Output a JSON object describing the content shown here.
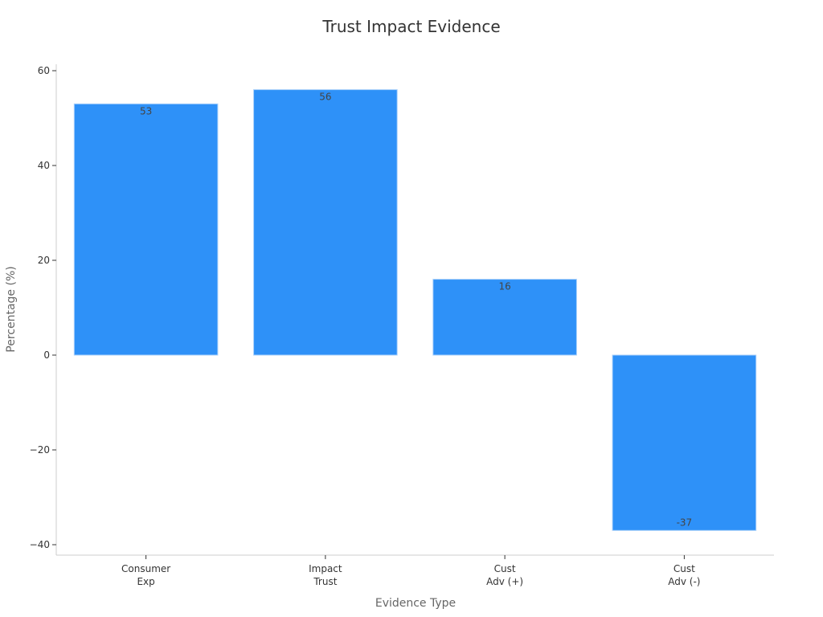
{
  "chart_data": {
    "type": "bar",
    "title": "Trust Impact Evidence",
    "xlabel": "Evidence Type",
    "ylabel": "Percentage (%)",
    "categories": [
      [
        "Consumer",
        "Exp"
      ],
      [
        "Impact",
        "Trust"
      ],
      [
        "Cust",
        "Adv (+)"
      ],
      [
        "Cust",
        "Adv (-)"
      ]
    ],
    "values": [
      53,
      56,
      16,
      -37
    ],
    "value_labels": [
      "53",
      "56",
      "16",
      "-37"
    ],
    "ylim": [
      -42,
      61
    ],
    "yticks": [
      -40,
      -20,
      0,
      20,
      40,
      60
    ],
    "ytick_labels": [
      "−40",
      "−20",
      "0",
      "20",
      "40",
      "60"
    ],
    "grid": false,
    "bar_color": "#2e91f8",
    "bar_edge_color": "#a9d0fa"
  }
}
